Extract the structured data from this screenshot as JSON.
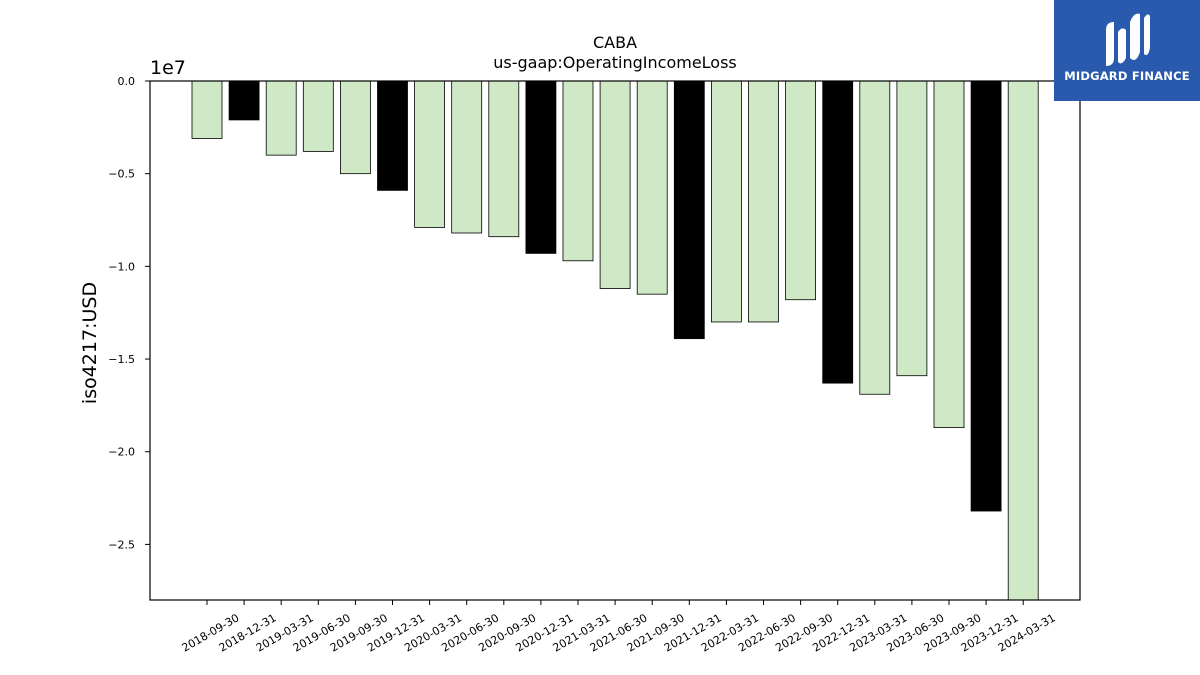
{
  "chart_data": {
    "type": "bar",
    "title": "CABA",
    "subtitle": "us-gaap:OperatingIncomeLoss",
    "ylabel": "iso4217:USD",
    "xlabel": "",
    "offset_label": "1e7",
    "ylim": [
      -28000000,
      0
    ],
    "yticks": [
      0,
      -5000000,
      -10000000,
      -15000000,
      -20000000,
      -25000000
    ],
    "ytick_labels": [
      "0.0",
      "−0.5",
      "−1.0",
      "−1.5",
      "−2.0",
      "−2.5"
    ],
    "categories": [
      "2018-09-30",
      "2018-12-31",
      "2019-03-31",
      "2019-06-30",
      "2019-09-30",
      "2019-12-31",
      "2020-03-31",
      "2020-06-30",
      "2020-09-30",
      "2020-12-31",
      "2021-03-31",
      "2021-06-30",
      "2021-09-30",
      "2021-12-31",
      "2022-03-31",
      "2022-06-30",
      "2022-09-30",
      "2022-12-31",
      "2023-03-31",
      "2023-06-30",
      "2023-09-30",
      "2023-12-31",
      "2024-03-31"
    ],
    "values": [
      -3100000,
      -2100000,
      -4000000,
      -3800000,
      -5000000,
      -5900000,
      -7900000,
      -8200000,
      -8400000,
      -9300000,
      -9700000,
      -11200000,
      -11500000,
      -13900000,
      -13000000,
      -13000000,
      -11800000,
      -16300000,
      -16900000,
      -15900000,
      -18700000,
      -23200000,
      -28000000
    ],
    "bar_colors": [
      "#cfe9c6",
      "#000000",
      "#cfe9c6",
      "#cfe9c6",
      "#cfe9c6",
      "#000000",
      "#cfe9c6",
      "#cfe9c6",
      "#cfe9c6",
      "#000000",
      "#cfe9c6",
      "#cfe9c6",
      "#cfe9c6",
      "#000000",
      "#cfe9c6",
      "#cfe9c6",
      "#cfe9c6",
      "#000000",
      "#cfe9c6",
      "#cfe9c6",
      "#cfe9c6",
      "#000000",
      "#cfe9c6"
    ],
    "grid": false,
    "legend": "none"
  },
  "logo": {
    "text": "MIDGARD FINANCE",
    "background": "#2a5aad",
    "icon": "midgard-logo-icon"
  }
}
